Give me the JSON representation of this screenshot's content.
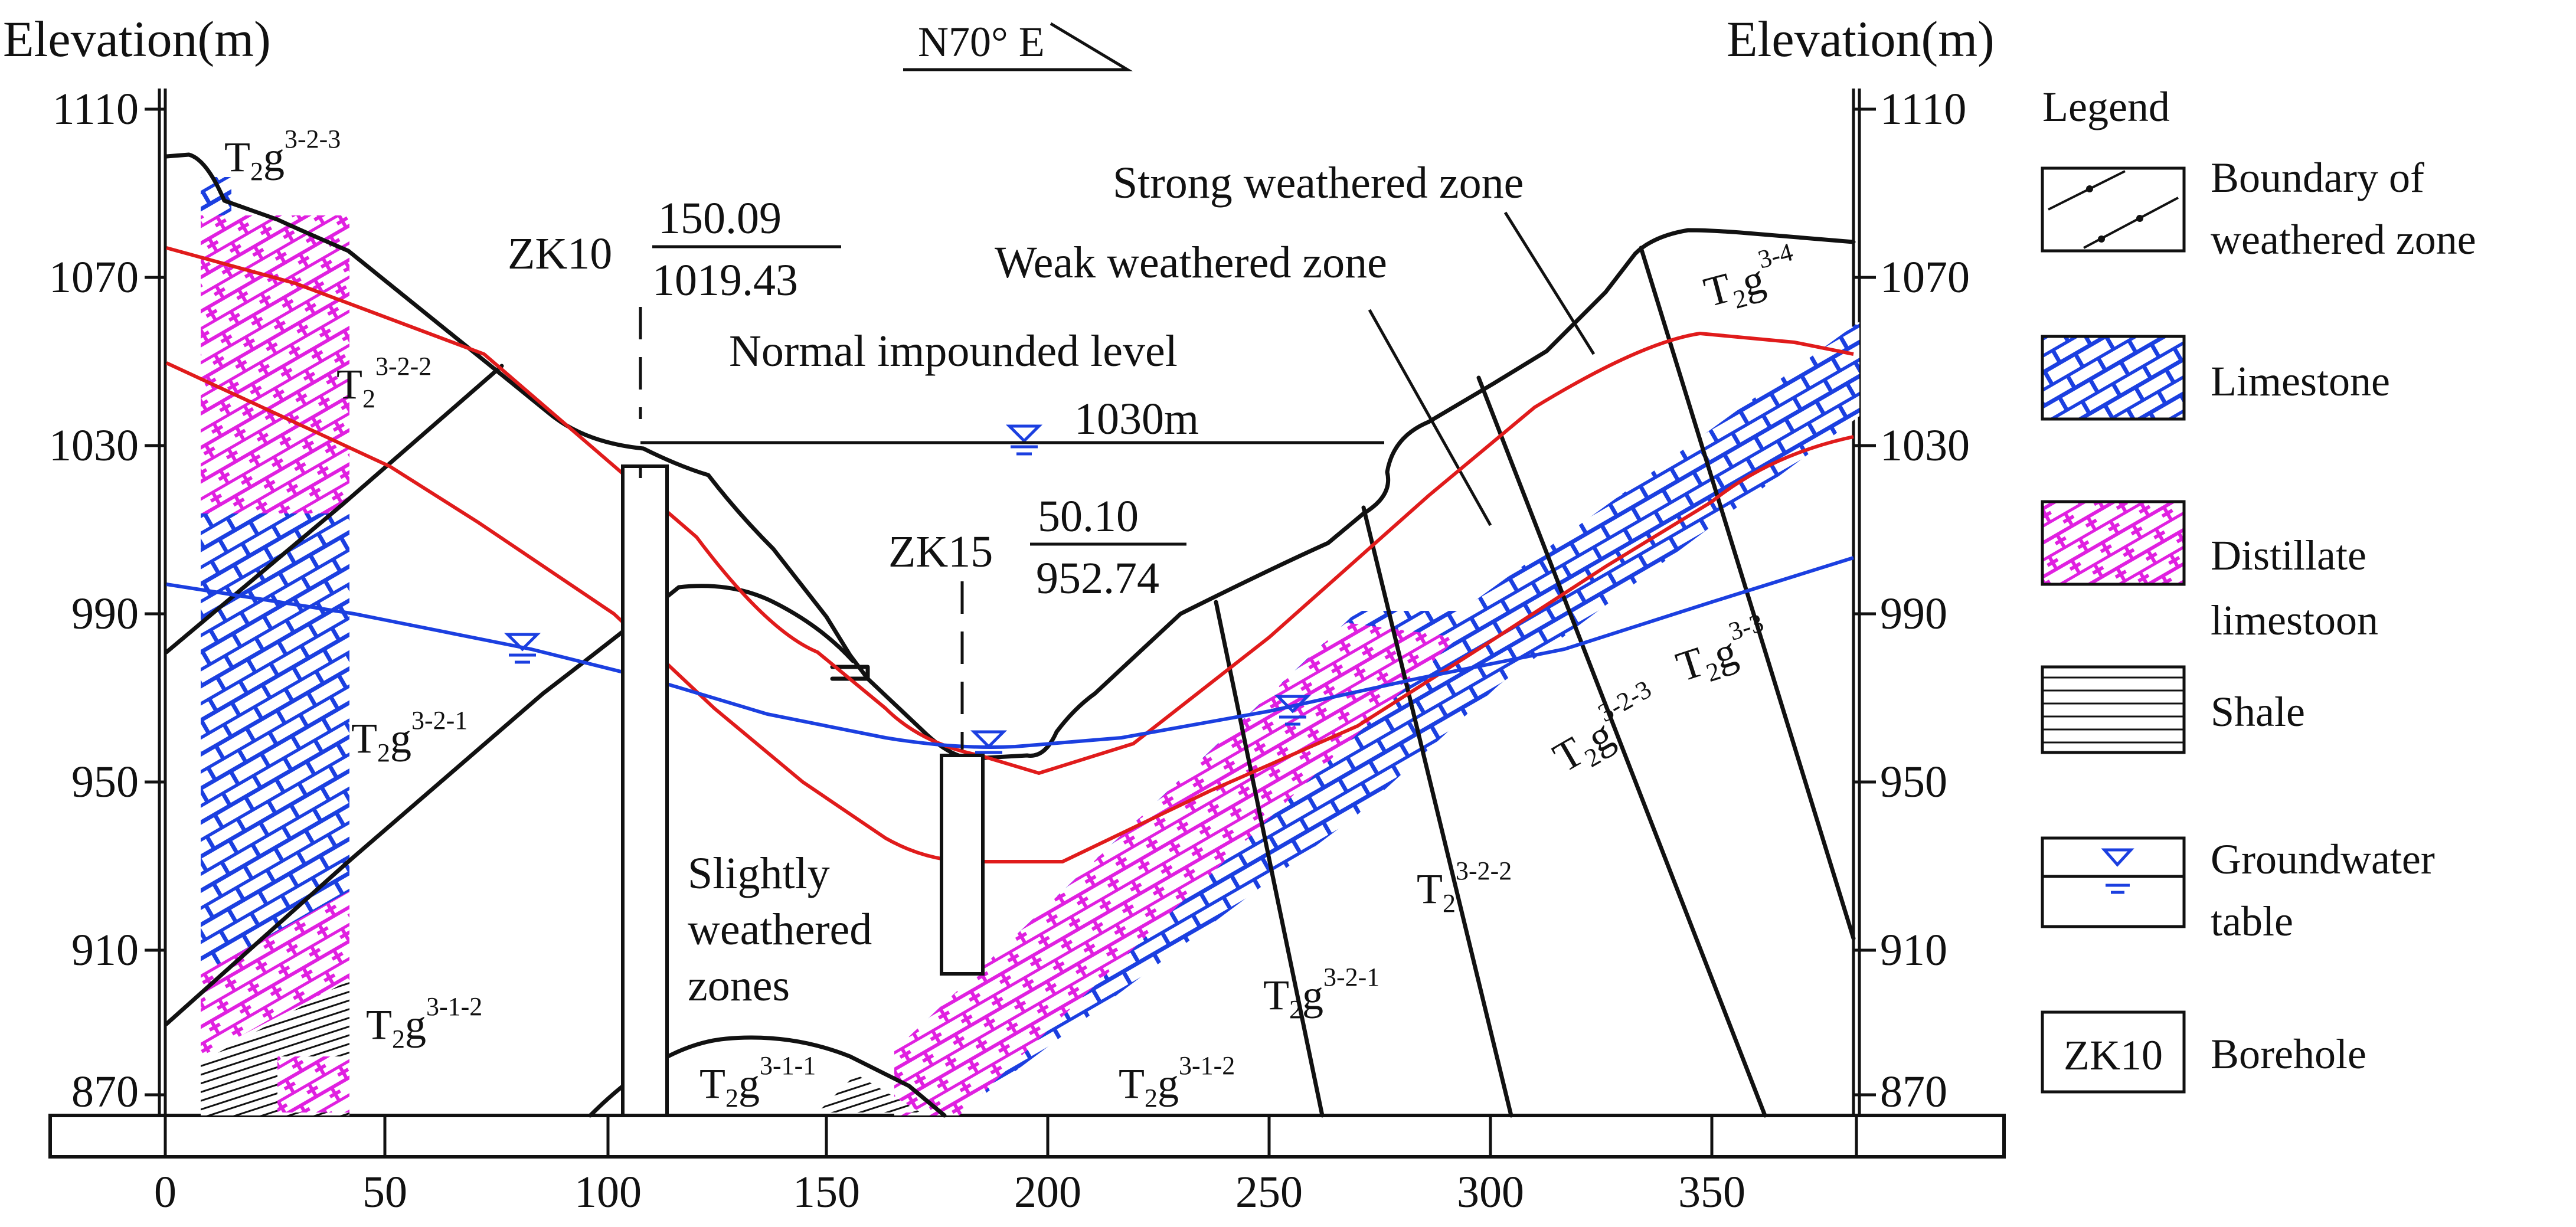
{
  "direction": "N70° E",
  "axes": {
    "left_title": "Elevation(m)",
    "right_title": "Elevation(m)",
    "y_ticks": [
      "1110",
      "1070",
      "1030",
      "990",
      "950",
      "910",
      "870"
    ],
    "x_ticks": [
      "0",
      "50",
      "100",
      "150",
      "200",
      "250",
      "300",
      "350"
    ]
  },
  "boreholes": [
    {
      "id": "ZK10",
      "top": "150.09",
      "bottom": "1019.43"
    },
    {
      "id": "ZK15",
      "top": "50.10",
      "bottom": "952.74"
    }
  ],
  "annotations": {
    "impounded_line1": "Normal impounded level",
    "impounded_line2": "1030m",
    "strong_zone": "Strong weathered zone",
    "weak_zone": "Weak weathered zone",
    "slight_line1": "Slightly",
    "slight_line2": "weathered",
    "slight_line3": "zones"
  },
  "strata": {
    "t323_left": {
      "base": "T",
      "sub": "2",
      "g": "g",
      "sup": "3-2-3"
    },
    "t322_left": {
      "base": "T",
      "sub": "2",
      "sup": "3-2-2"
    },
    "t321_left": {
      "base": "T",
      "sub": "2",
      "g": "g",
      "sup": "3-2-1"
    },
    "t312_left": {
      "base": "T",
      "sub": "2",
      "g": "g",
      "sup": "3-1-2"
    },
    "t311": {
      "base": "T",
      "sub": "2",
      "g": "g",
      "sup": "3-1-1"
    },
    "t312_mid": {
      "base": "T",
      "sub": "2",
      "g": "g",
      "sup": "3-1-2"
    },
    "t321_right": {
      "base": "T",
      "sub": "2",
      "g": "g",
      "sup": "3-2-1"
    },
    "t322_right": {
      "base": "T",
      "sub": "2",
      "sup": "3-2-2"
    },
    "t323_right": {
      "base": "T",
      "sub": "2",
      "g": "g",
      "sup": "3-2-3"
    },
    "t33": {
      "base": "T",
      "sub": "2",
      "g": "g",
      "sup": "3-3"
    },
    "t34": {
      "base": "T",
      "sub": "2",
      "g": "g",
      "sup": "3-4"
    }
  },
  "legend": {
    "title": "Legend",
    "items": [
      {
        "key": "boundary",
        "line1": "Boundary of",
        "line2": "weathered zone"
      },
      {
        "key": "limestone",
        "line1": "Limestone",
        "line2": ""
      },
      {
        "key": "distillate",
        "line1": "Distillate",
        "line2": "limestoon"
      },
      {
        "key": "shale",
        "line1": "Shale",
        "line2": ""
      },
      {
        "key": "groundwater",
        "line1": "Groundwater",
        "line2": "table"
      },
      {
        "key": "borehole",
        "line1": "Borehole",
        "line2": "",
        "symbol": "ZK10"
      }
    ]
  },
  "colors": {
    "boundary_line": "#e01b1b",
    "groundwater_line": "#1b3fe0",
    "limestone": "#1b3fe0",
    "distillate": "#e020e0",
    "outline": "#111111"
  }
}
